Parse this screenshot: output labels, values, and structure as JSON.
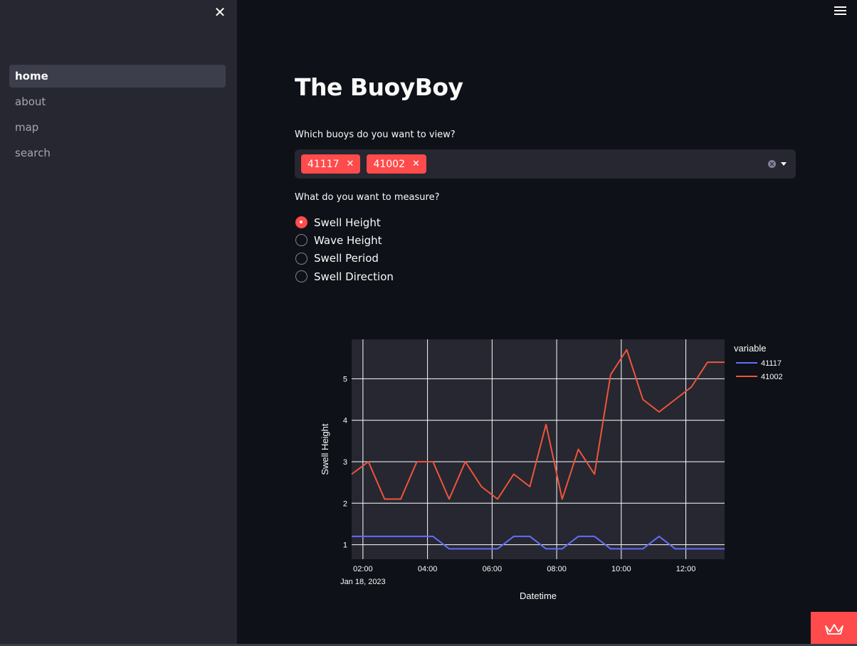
{
  "sidebar": {
    "close_icon": "close-icon",
    "items": [
      {
        "label": "home",
        "active": true
      },
      {
        "label": "about",
        "active": false
      },
      {
        "label": "map",
        "active": false
      },
      {
        "label": "search",
        "active": false
      }
    ]
  },
  "header": {
    "menu_icon": "hamburger-menu-icon"
  },
  "main": {
    "title": "The BuoyBoy",
    "buoy_select": {
      "label": "Which buoys do you want to view?",
      "selected": [
        "41117",
        "41002"
      ],
      "remove_glyph": "✕"
    },
    "measure": {
      "label": "What do you want to measure?",
      "options": [
        "Swell Height",
        "Wave Height",
        "Swell Period",
        "Swell Direction"
      ],
      "selected": "Swell Height"
    }
  },
  "colors": {
    "accent": "#ff4b4b",
    "series_41117": "#636efa",
    "series_41002": "#ef553b",
    "plot_bg": "#262730"
  },
  "chart_data": {
    "type": "line",
    "xlabel": "Datetime",
    "ylabel": "Swell Height",
    "legend_title": "variable",
    "legend_position": "top-right",
    "x_tick_labels": [
      "02:00",
      "04:00",
      "06:00",
      "08:00",
      "10:00",
      "12:00"
    ],
    "x_date_label": "Jan 18, 2023",
    "y_ticks": [
      1,
      2,
      3,
      4,
      5
    ],
    "xlim_hours": [
      1.65,
      13.2
    ],
    "ylim": [
      0.65,
      5.95
    ],
    "grid": true,
    "series": [
      {
        "name": "41117",
        "x": [
          1.65,
          2.17,
          2.67,
          3.17,
          3.67,
          4.17,
          4.67,
          5.17,
          5.67,
          6.17,
          6.67,
          7.17,
          7.67,
          8.17,
          8.67,
          9.17,
          9.67,
          10.17,
          10.67,
          11.17,
          11.67,
          12.17,
          12.67,
          13.2
        ],
        "values": [
          1.2,
          1.2,
          1.2,
          1.2,
          1.2,
          1.2,
          0.9,
          0.9,
          0.9,
          0.9,
          1.2,
          1.2,
          0.9,
          0.9,
          1.2,
          1.2,
          0.9,
          0.9,
          0.9,
          1.2,
          0.9,
          0.9,
          0.9,
          0.9
        ]
      },
      {
        "name": "41002",
        "x": [
          1.65,
          2.17,
          2.67,
          3.17,
          3.67,
          4.17,
          4.67,
          5.17,
          5.67,
          6.17,
          6.67,
          7.17,
          7.67,
          8.17,
          8.67,
          9.17,
          9.67,
          10.17,
          10.67,
          11.17,
          11.67,
          12.17,
          12.67,
          13.2
        ],
        "values": [
          2.7,
          3.0,
          2.1,
          2.1,
          3.0,
          3.0,
          2.1,
          3.0,
          2.4,
          2.1,
          2.7,
          2.4,
          3.9,
          2.1,
          3.3,
          2.7,
          5.1,
          5.7,
          4.5,
          4.2,
          4.5,
          4.8,
          5.4,
          5.4
        ]
      }
    ]
  }
}
